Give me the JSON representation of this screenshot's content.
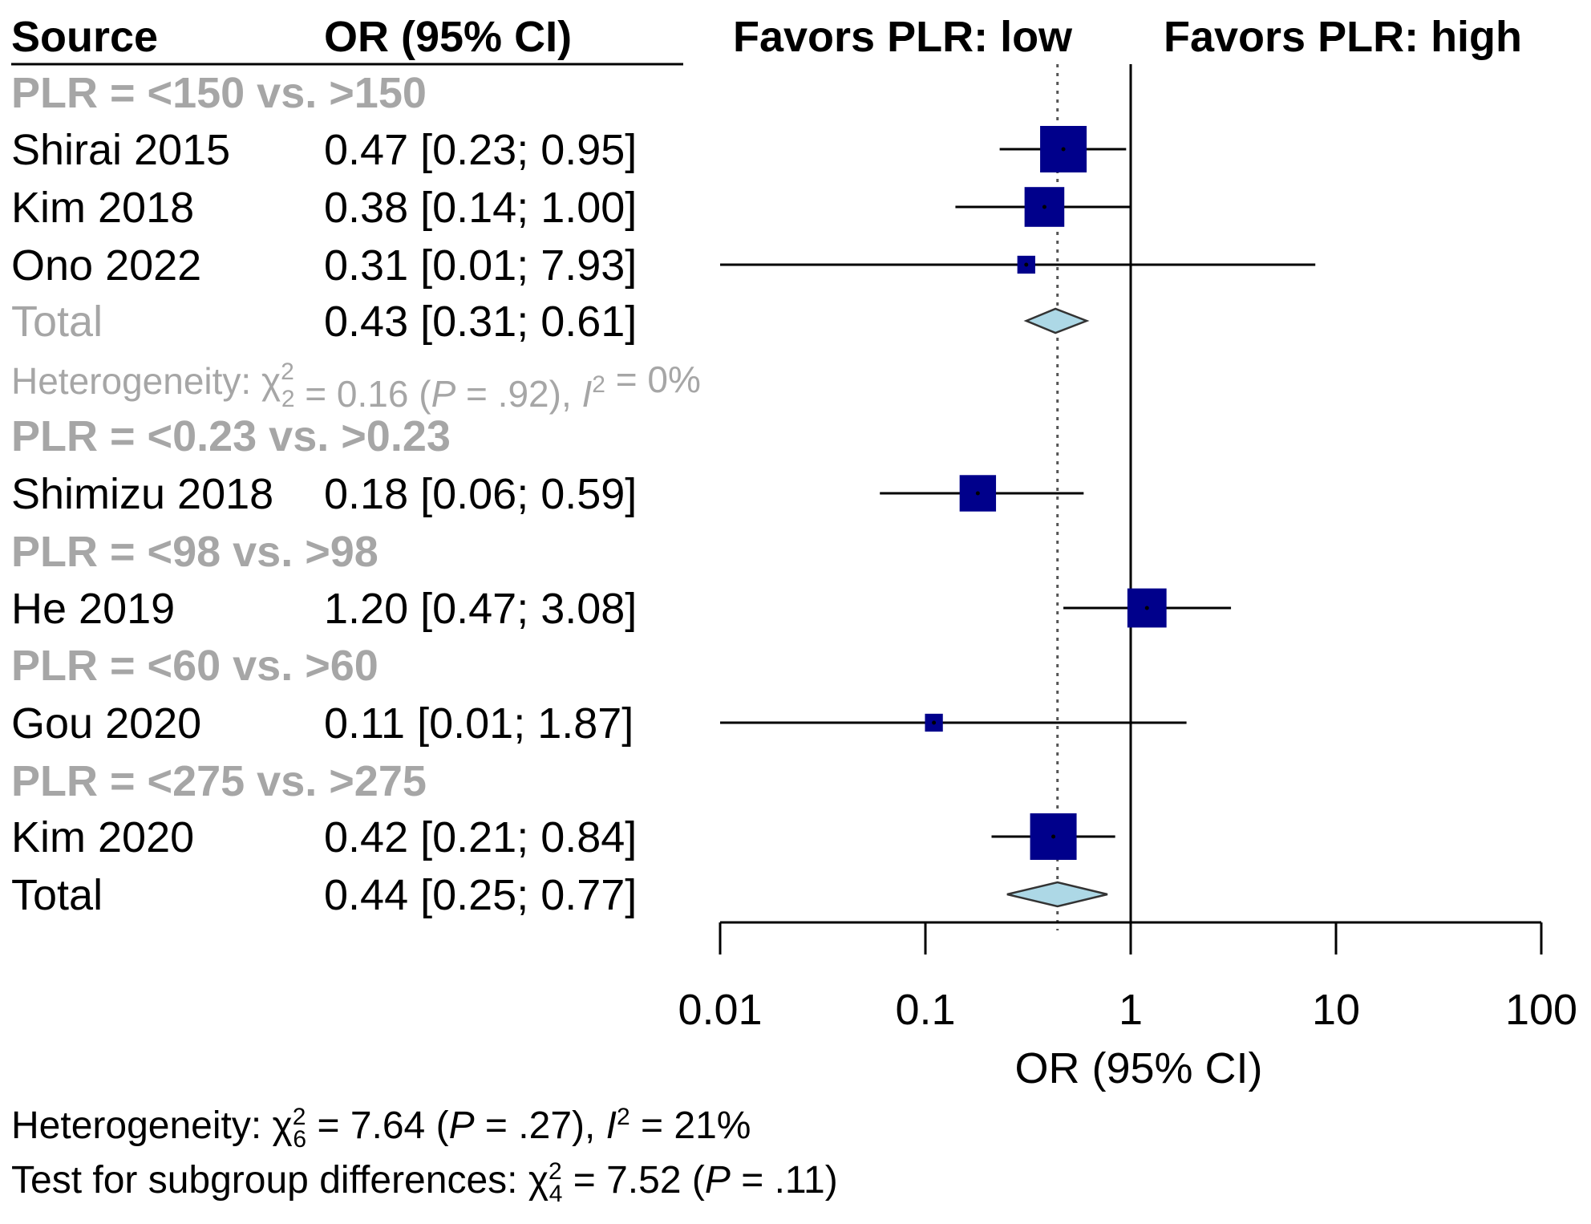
{
  "chart_data": {
    "type": "forest",
    "headers": {
      "source": "Source",
      "estimate": "OR (95% CI)",
      "favors_left": "Favors PLR: low",
      "favors_right": "Favors PLR: high"
    },
    "xaxis": {
      "label": "OR (95% CI)",
      "scale": "log",
      "range": [
        0.01,
        100
      ],
      "ticks": [
        "0.01",
        "0.1",
        "1",
        "10",
        "100"
      ],
      "tick_values": [
        0.01,
        0.1,
        1,
        10,
        100
      ]
    },
    "reference_line": 1,
    "overall_line": 0.44,
    "rows": [
      {
        "kind": "subgroup",
        "label": "PLR = <150 vs. >150"
      },
      {
        "kind": "study",
        "label": "Shirai 2015",
        "text": "0.47 [0.23; 0.95]",
        "or": 0.47,
        "lo": 0.23,
        "hi": 0.95,
        "weight": 1.0
      },
      {
        "kind": "study",
        "label": "Kim 2018",
        "text": "0.38 [0.14; 1.00]",
        "or": 0.38,
        "lo": 0.14,
        "hi": 1.0,
        "weight": 0.8
      },
      {
        "kind": "study",
        "label": "Ono 2022",
        "text": "0.31 [0.01; 7.93]",
        "or": 0.31,
        "lo": 0.01,
        "hi": 7.93,
        "weight": 0.15
      },
      {
        "kind": "subtotal",
        "label": "Total",
        "text": "0.43 [0.31; 0.61]",
        "or": 0.43,
        "lo": 0.31,
        "hi": 0.61
      },
      {
        "kind": "heterogeneity",
        "prefix": "Heterogeneity: ",
        "chi": "χ",
        "sup": "2",
        "sub": "2",
        "part1": " = 0.16 (",
        "p": "P",
        "part2": " = .92), ",
        "i": "I",
        "isup": "2",
        "part3": " = 0%"
      },
      {
        "kind": "subgroup",
        "label": "PLR = <0.23 vs. >0.23"
      },
      {
        "kind": "study",
        "label": "Shimizu 2018",
        "text": "0.18 [0.06; 0.59]",
        "or": 0.18,
        "lo": 0.06,
        "hi": 0.59,
        "weight": 0.7
      },
      {
        "kind": "subgroup",
        "label": "PLR = <98 vs. >98"
      },
      {
        "kind": "study",
        "label": "He 2019",
        "text": "1.20 [0.47; 3.08]",
        "or": 1.2,
        "lo": 0.47,
        "hi": 3.08,
        "weight": 0.78
      },
      {
        "kind": "subgroup",
        "label": "PLR = <60 vs. >60"
      },
      {
        "kind": "study",
        "label": "Gou 2020",
        "text": "0.11 [0.01; 1.87]",
        "or": 0.11,
        "lo": 0.01,
        "hi": 1.87,
        "weight": 0.15
      },
      {
        "kind": "subgroup",
        "label": "PLR = <275 vs. >275"
      },
      {
        "kind": "study",
        "label": "Kim 2020",
        "text": "0.42 [0.21; 0.84]",
        "or": 0.42,
        "lo": 0.21,
        "hi": 0.84,
        "weight": 1.0
      },
      {
        "kind": "total",
        "label": "Total",
        "text": "0.44 [0.25; 0.77]",
        "or": 0.44,
        "lo": 0.25,
        "hi": 0.77
      }
    ],
    "footer": {
      "heterogeneity": {
        "prefix": "Heterogeneity: ",
        "chi": "χ",
        "sup": "2",
        "sub": "6",
        "part1": " = 7.64 (",
        "p": "P",
        "part2": " = .27), ",
        "i": "I",
        "isup": "2",
        "part3": " = 21%"
      },
      "subgroup_test": {
        "prefix": "Test for subgroup differences: ",
        "chi": "χ",
        "sup": "2",
        "sub": "4",
        "part1": " = 7.52 (",
        "p": "P",
        "part2": " = .11)"
      }
    },
    "colors": {
      "box": "#00008b",
      "diamond": "#add8e6",
      "subgroup_text": "#a6a6a6"
    }
  }
}
